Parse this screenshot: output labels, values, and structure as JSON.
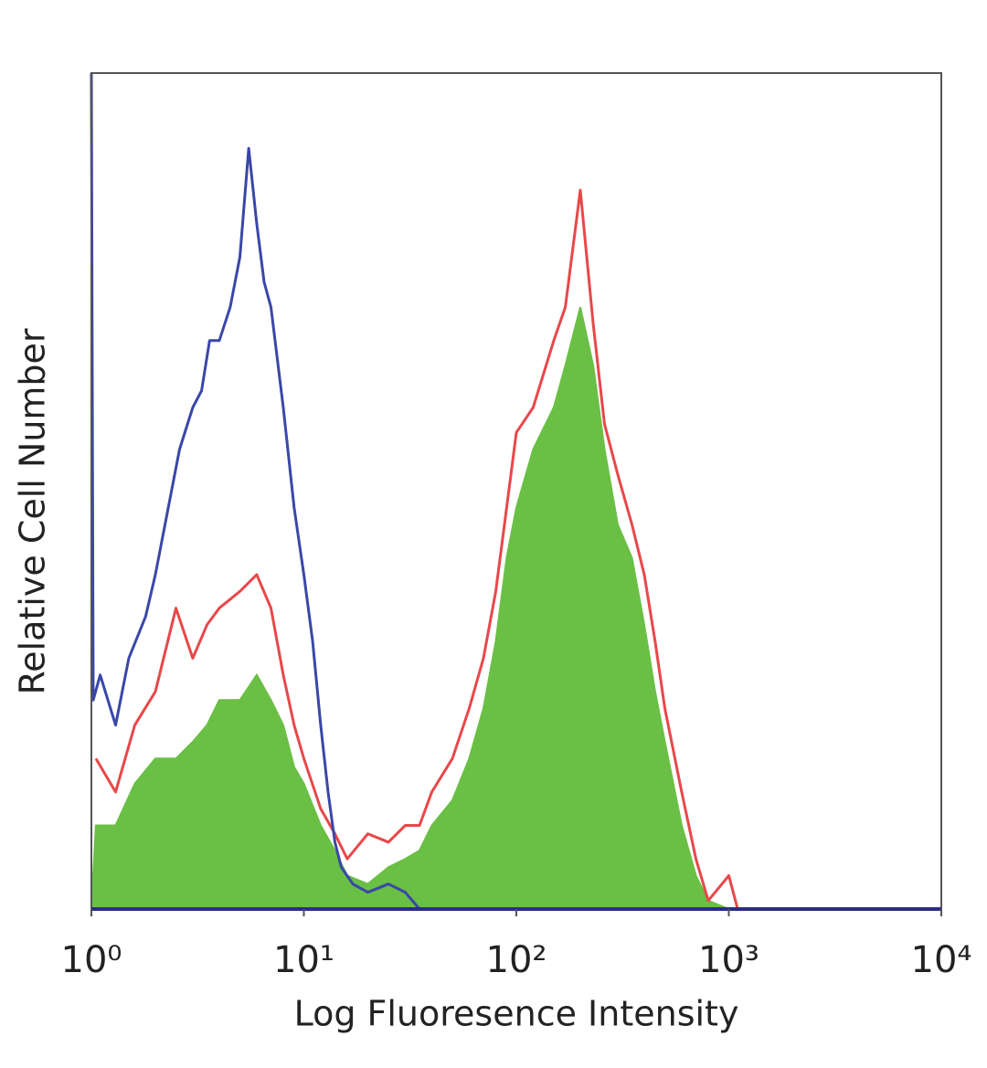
{
  "chart_data": {
    "type": "histogram-overlay",
    "x_label": "Log Fluoresence Intensity",
    "y_label": "Relative Cell Number",
    "xscale": "log",
    "xlim": [
      1,
      10000
    ],
    "xticks": [
      {
        "value": 1,
        "label": "10⁰"
      },
      {
        "value": 10,
        "label": "10¹"
      },
      {
        "value": 100,
        "label": "10²"
      },
      {
        "value": 1000,
        "label": "10³"
      },
      {
        "value": 10000,
        "label": "10⁴"
      }
    ],
    "ylim": [
      0,
      100
    ],
    "series": [
      {
        "color": "#6abf45",
        "filled": true,
        "x": [
          1,
          1.05,
          1.3,
          1.6,
          2,
          2.5,
          3,
          3.5,
          4,
          5,
          6,
          7,
          8,
          9,
          10,
          12,
          14,
          16,
          20,
          25,
          30,
          35,
          40,
          50,
          60,
          70,
          80,
          90,
          100,
          120,
          150,
          170,
          200,
          230,
          260,
          300,
          350,
          400,
          450,
          500,
          600,
          700,
          800,
          1000,
          10000
        ],
        "values": [
          0,
          10,
          10,
          15,
          18,
          18,
          20,
          22,
          25,
          25,
          28,
          25,
          22,
          17,
          15,
          10,
          7,
          4,
          3,
          5,
          6,
          7,
          10,
          13,
          18,
          24,
          32,
          42,
          48,
          55,
          60,
          65,
          72,
          65,
          55,
          46,
          42,
          34,
          26,
          20,
          10,
          4,
          1,
          0,
          0
        ]
      },
      {
        "color": "#e8484a",
        "filled": false,
        "x": [
          1.05,
          1.3,
          1.6,
          2,
          2.5,
          3,
          3.5,
          4,
          5,
          6,
          7,
          8,
          9,
          10,
          12,
          14,
          16,
          20,
          25,
          30,
          35,
          40,
          50,
          60,
          70,
          80,
          90,
          100,
          120,
          150,
          170,
          200,
          230,
          260,
          300,
          350,
          400,
          450,
          500,
          600,
          700,
          800,
          1000,
          1100,
          1200
        ],
        "values": [
          18,
          14,
          22,
          26,
          36,
          30,
          34,
          36,
          38,
          40,
          36,
          28,
          22,
          18,
          12,
          9,
          6,
          9,
          8,
          10,
          10,
          14,
          18,
          24,
          30,
          38,
          48,
          57,
          60,
          68,
          72,
          86,
          70,
          58,
          52,
          46,
          40,
          32,
          24,
          14,
          6,
          1,
          4,
          0,
          0
        ]
      },
      {
        "color": "#3a47a8",
        "filled": false,
        "x": [
          1,
          1.02,
          1.1,
          1.3,
          1.5,
          1.8,
          2,
          2.3,
          2.6,
          3,
          3.3,
          3.6,
          4,
          4.5,
          5,
          5.5,
          6,
          6.5,
          7,
          8,
          9,
          10,
          11,
          12,
          13,
          14,
          15,
          17,
          20,
          25,
          30,
          35,
          10000
        ],
        "values": [
          100,
          25,
          28,
          22,
          30,
          35,
          40,
          48,
          55,
          60,
          62,
          68,
          68,
          72,
          78,
          91,
          82,
          75,
          72,
          60,
          48,
          40,
          32,
          22,
          14,
          8,
          5,
          3,
          2,
          3,
          2,
          0,
          0
        ]
      }
    ]
  }
}
